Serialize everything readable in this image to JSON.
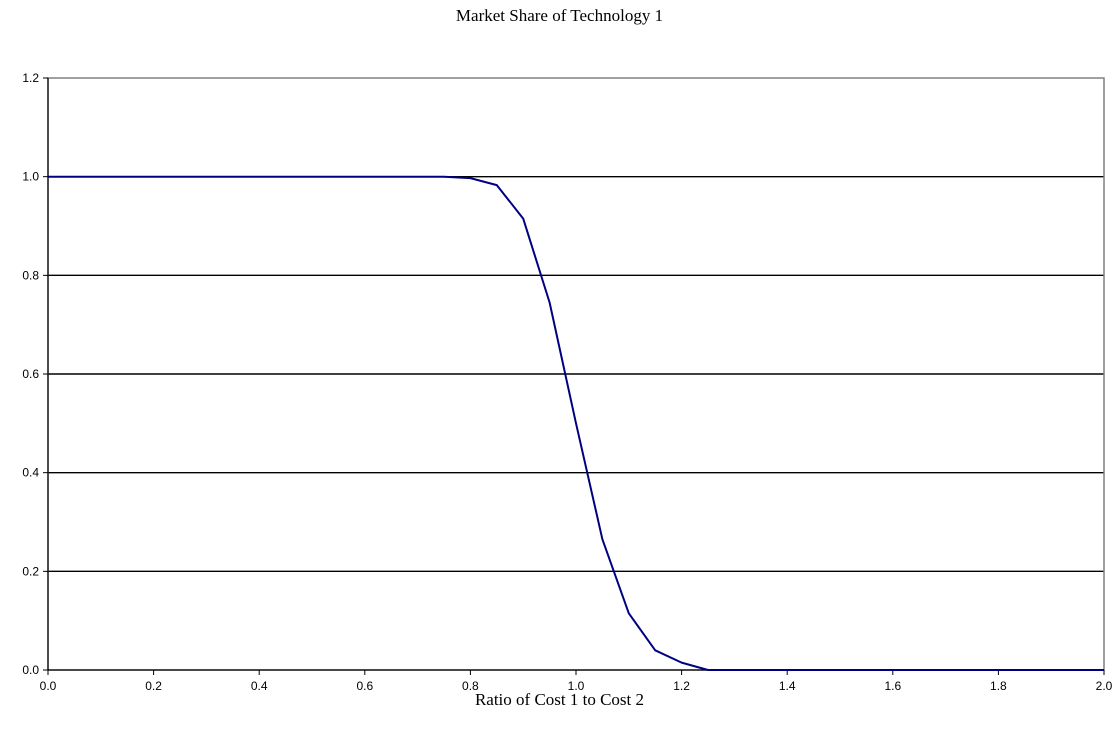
{
  "chart_data": {
    "type": "line",
    "title": "Market Share of Technology 1",
    "xlabel": "Ratio of Cost 1 to Cost 2",
    "ylabel": "",
    "xlim": [
      0,
      2
    ],
    "ylim": [
      0,
      1.2
    ],
    "x_ticks": [
      "0.0",
      "0.2",
      "0.4",
      "0.6",
      "0.8",
      "1.0",
      "1.2",
      "1.4",
      "1.6",
      "1.8",
      "2.0"
    ],
    "y_ticks": [
      "0.0",
      "0.2",
      "0.4",
      "0.6",
      "0.8",
      "1.0",
      "1.2"
    ],
    "grid": true,
    "legend": "none",
    "series": [
      {
        "color": "#000080",
        "x": [
          0.0,
          0.05,
          0.1,
          0.15,
          0.2,
          0.25,
          0.3,
          0.35,
          0.4,
          0.45,
          0.5,
          0.55,
          0.6,
          0.65,
          0.7,
          0.75,
          0.8,
          0.85,
          0.9,
          0.95,
          1.0,
          1.05,
          1.1,
          1.15,
          1.2,
          1.25,
          1.3,
          1.35,
          1.4,
          1.45,
          1.5,
          1.55,
          1.6,
          1.65,
          1.7,
          1.75,
          1.8,
          1.85,
          1.9,
          1.95,
          2.0
        ],
        "y": [
          1.0,
          1.0,
          1.0,
          1.0,
          1.0,
          1.0,
          1.0,
          1.0,
          1.0,
          1.0,
          1.0,
          1.0,
          1.0,
          1.0,
          1.0,
          1.0,
          0.997,
          0.983,
          0.915,
          0.745,
          0.5,
          0.265,
          0.115,
          0.04,
          0.015,
          0.0,
          0.0,
          0.0,
          0.0,
          0.0,
          0.0,
          0.0,
          0.0,
          0.0,
          0.0,
          0.0,
          0.0,
          0.0,
          0.0,
          0.0,
          0.0
        ]
      }
    ]
  }
}
